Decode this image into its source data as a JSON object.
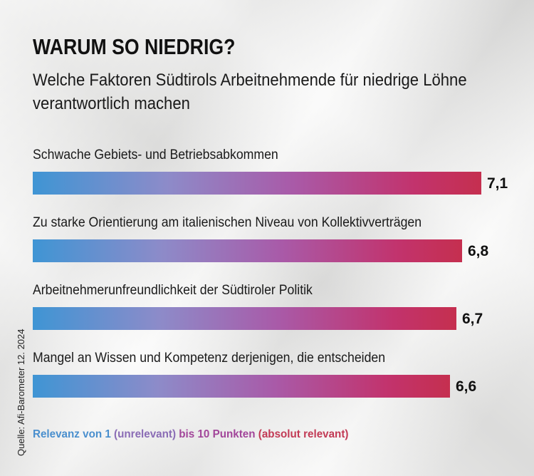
{
  "title": "WARUM SO NIEDRIG?",
  "subtitle": "Welche Faktoren Südtirols Arbeitnehmende für niedrige Löhne verantwortlich machen",
  "footnote": {
    "part1": "Relevanz von 1 ",
    "part2": "(unrelevant) ",
    "part3": "bis 10 Punkten ",
    "part4": "(absolut relevant)"
  },
  "source": "Quelle: Afi-Barometer 12. 2024",
  "colors": {
    "bar_start": "#3f95d4",
    "bar_mid": "#a95aa8",
    "bar_end": "#c52f4f"
  },
  "chart_data": {
    "type": "bar",
    "orientation": "horizontal",
    "title": "WARUM SO NIEDRIG?",
    "categories": [
      "Schwache Gebiets- und Betriebsabkommen",
      "Zu starke Orientierung am italienischen Niveau von Kollektivverträgen",
      "Arbeitnehmerunfreundlichkeit der Südtiroler Politik",
      "Mangel an Wissen und Kompetenz derjenigen, die entscheiden"
    ],
    "values": [
      7.1,
      6.8,
      6.7,
      6.6
    ],
    "value_labels": [
      "7,1",
      "6,8",
      "6,7",
      "6,6"
    ],
    "xlim": [
      0,
      7.1
    ],
    "grid": false
  }
}
